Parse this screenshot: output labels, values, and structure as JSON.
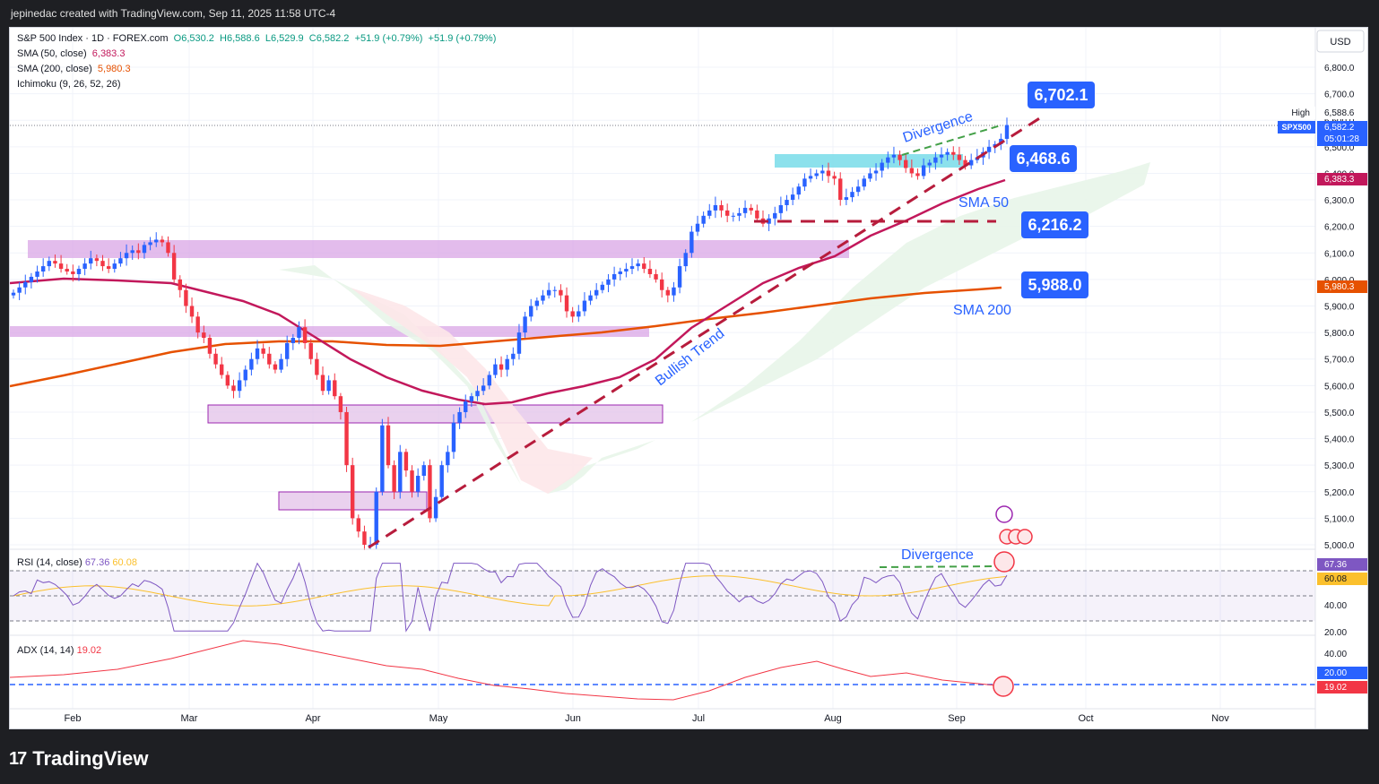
{
  "header": {
    "text": "jepinedac created with TradingView.com, Sep 11, 2025 11:58 UTC-4"
  },
  "footer": {
    "brand": "TradingView"
  },
  "legend": {
    "line1": {
      "name": "S&P 500 Index · 1D · FOREX.com",
      "o": "O6,530.2",
      "h": "H6,588.6",
      "l": "L6,529.9",
      "c": "C6,582.2",
      "chg": "+51.9 (+0.79%)",
      "chg2": "+51.9 (+0.79%)"
    },
    "sma50": {
      "name": "SMA (50, close)",
      "value": "6,383.3"
    },
    "sma200": {
      "name": "SMA (200, close)",
      "value": "5,980.3"
    },
    "ichimoku": {
      "name": "Ichimoku (9, 26, 52, 26)"
    }
  },
  "colors": {
    "up": "#2962ff",
    "down": "#f23645",
    "sma50": "#c2185b",
    "sma200": "#e65100",
    "cloud": "#e8f5e9",
    "cloudRed": "#fde7e9",
    "zone": "#d9a6e6",
    "cyan": "#80deea",
    "label": "#2962ff",
    "trend": "#b71c3c"
  },
  "chart_data": {
    "type": "candlestick",
    "currency": "USD",
    "ylim": [
      4950,
      6900
    ],
    "y_ticks": [
      "6,800.0",
      "6,700.0",
      "6,600.0",
      "6,500.0",
      "6,400.0",
      "6,300.0",
      "6,200.0",
      "6,100.0",
      "6,000.0",
      "5,900.0",
      "5,800.0",
      "5,700.0",
      "5,600.0",
      "5,500.0",
      "5,400.0",
      "5,300.0",
      "5,200.0",
      "5,100.0",
      "5,000.0"
    ],
    "x_labels": [
      "Feb",
      "Mar",
      "Apr",
      "May",
      "Jun",
      "Jul",
      "Aug",
      "Sep",
      "Oct",
      "Nov"
    ],
    "close_path": [
      5950,
      5970,
      5990,
      6010,
      6030,
      6050,
      6070,
      6060,
      6040,
      6030,
      6020,
      6040,
      6060,
      6080,
      6070,
      6050,
      6040,
      6060,
      6080,
      6100,
      6110,
      6100,
      6130,
      6140,
      6150,
      6140,
      6100,
      6000,
      5960,
      5900,
      5860,
      5800,
      5780,
      5720,
      5680,
      5640,
      5600,
      5580,
      5620,
      5660,
      5700,
      5740,
      5720,
      5680,
      5660,
      5700,
      5760,
      5780,
      5820,
      5760,
      5700,
      5640,
      5580,
      5620,
      5560,
      5500,
      5300,
      5100,
      5050,
      5000,
      5000,
      5200,
      5450,
      5300,
      5200,
      5350,
      5280,
      5200,
      5260,
      5300,
      5100,
      5180,
      5300,
      5350,
      5460,
      5500,
      5540,
      5560,
      5580,
      5600,
      5640,
      5680,
      5660,
      5700,
      5720,
      5800,
      5860,
      5900,
      5920,
      5940,
      5960,
      5960,
      5940,
      5880,
      5860,
      5880,
      5920,
      5940,
      5960,
      5980,
      6000,
      6020,
      6030,
      6040,
      6050,
      6060,
      6040,
      6020,
      6000,
      5960,
      5940,
      5970,
      6050,
      6100,
      6180,
      6210,
      6240,
      6260,
      6280,
      6260,
      6240,
      6240,
      6250,
      6270,
      6260,
      6230,
      6210,
      6230,
      6250,
      6280,
      6300,
      6320,
      6350,
      6380,
      6390,
      6400,
      6410,
      6390,
      6380,
      6300,
      6310,
      6330,
      6350,
      6380,
      6400,
      6410,
      6440,
      6460,
      6470,
      6450,
      6420,
      6400,
      6390,
      6430,
      6440,
      6460,
      6470,
      6480,
      6470,
      6450,
      6430,
      6450,
      6460,
      6480,
      6500,
      6510,
      6530,
      6582
    ],
    "high_value": "6,588.6",
    "symbol": "SPX500",
    "last_price": "6,582.2",
    "countdown": "05:01:28",
    "high_label": "High",
    "series": [
      {
        "name": "SMA (50, close)",
        "last": "6,383.3"
      },
      {
        "name": "SMA (200, close)",
        "last": "5,980.3"
      }
    ],
    "annotations": [
      {
        "text": "Divergence",
        "kind": "text"
      },
      {
        "text": "Bullish Trend",
        "kind": "text"
      },
      {
        "text": "SMA 50",
        "kind": "text"
      },
      {
        "text": "SMA 200",
        "kind": "text"
      },
      {
        "text": "6,702.1",
        "kind": "price-label"
      },
      {
        "text": "6,468.6",
        "kind": "price-label"
      },
      {
        "text": "6,216.2",
        "kind": "price-label"
      },
      {
        "text": "5,988.0",
        "kind": "price-label"
      }
    ],
    "rsi": {
      "name": "RSI (14, close)",
      "value": "67.36",
      "ma": "60.08",
      "ticks": [
        "60.00",
        "40.00",
        "20.00"
      ],
      "annotation": "Divergence"
    },
    "adx": {
      "name": "ADX (14, 14)",
      "value": "19.02",
      "threshold": "20.00",
      "ticks": [
        "40.00"
      ]
    }
  }
}
